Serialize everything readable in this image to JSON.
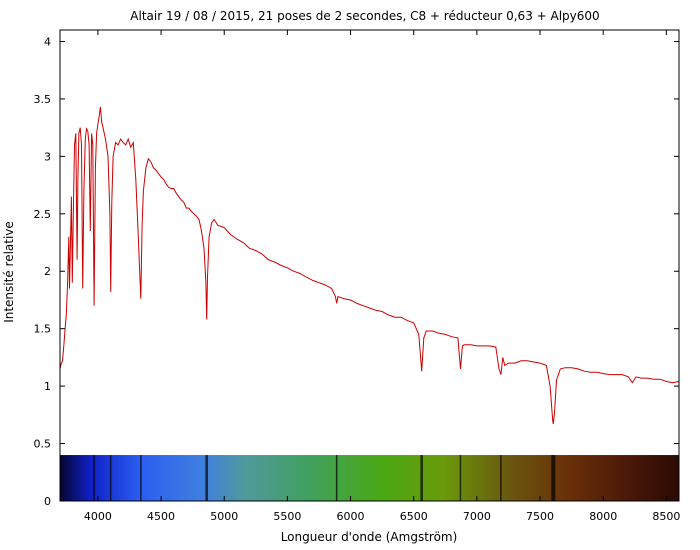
{
  "chart_data": {
    "type": "line",
    "title": "Altair 19 / 08 / 2015, 21 poses de 2 secondes,  C8 + réducteur 0,63 + Alpy600",
    "xlabel": "Longueur d'onde (Amgström)",
    "ylabel": "Intensité relative",
    "xlim": [
      3700,
      8600
    ],
    "ylim": [
      0,
      4.1
    ],
    "x_ticks": [
      4000,
      4500,
      5000,
      5500,
      6000,
      6500,
      7000,
      7500,
      8000,
      8500
    ],
    "y_ticks": [
      0,
      0.5,
      1,
      1.5,
      2,
      2.5,
      3,
      3.5,
      4
    ],
    "grid": false,
    "legend": "none",
    "line_color": "#cc0000",
    "spectrum_band": {
      "y_range": [
        0,
        0.4
      ],
      "absorption_lines": [
        3970,
        4101,
        4340,
        4861,
        5890,
        6563,
        6870,
        7190,
        7605
      ]
    },
    "series": [
      {
        "points": [
          [
            3700,
            1.15
          ],
          [
            3710,
            1.2
          ],
          [
            3720,
            1.22
          ],
          [
            3730,
            1.35
          ],
          [
            3740,
            1.5
          ],
          [
            3750,
            1.62
          ],
          [
            3760,
            1.9
          ],
          [
            3770,
            2.3
          ],
          [
            3775,
            1.85
          ],
          [
            3780,
            2.1
          ],
          [
            3790,
            2.65
          ],
          [
            3797,
            1.9
          ],
          [
            3805,
            2.5
          ],
          [
            3815,
            3.1
          ],
          [
            3825,
            3.2
          ],
          [
            3835,
            2.1
          ],
          [
            3842,
            2.8
          ],
          [
            3850,
            3.2
          ],
          [
            3860,
            3.25
          ],
          [
            3870,
            3.1
          ],
          [
            3880,
            1.85
          ],
          [
            3889,
            2.7
          ],
          [
            3900,
            3.15
          ],
          [
            3910,
            3.24
          ],
          [
            3920,
            3.22
          ],
          [
            3930,
            3.1
          ],
          [
            3940,
            2.35
          ],
          [
            3950,
            3.2
          ],
          [
            3960,
            3.1
          ],
          [
            3970,
            1.7
          ],
          [
            3980,
            2.9
          ],
          [
            3990,
            3.2
          ],
          [
            4000,
            3.28
          ],
          [
            4010,
            3.35
          ],
          [
            4020,
            3.43
          ],
          [
            4030,
            3.3
          ],
          [
            4040,
            3.25
          ],
          [
            4060,
            3.15
          ],
          [
            4080,
            3.0
          ],
          [
            4095,
            2.5
          ],
          [
            4101,
            1.82
          ],
          [
            4110,
            2.6
          ],
          [
            4120,
            3.0
          ],
          [
            4140,
            3.12
          ],
          [
            4160,
            3.1
          ],
          [
            4180,
            3.15
          ],
          [
            4200,
            3.12
          ],
          [
            4220,
            3.1
          ],
          [
            4240,
            3.15
          ],
          [
            4260,
            3.08
          ],
          [
            4280,
            3.12
          ],
          [
            4300,
            2.8
          ],
          [
            4320,
            2.3
          ],
          [
            4340,
            1.76
          ],
          [
            4350,
            2.4
          ],
          [
            4360,
            2.7
          ],
          [
            4380,
            2.9
          ],
          [
            4400,
            2.98
          ],
          [
            4420,
            2.95
          ],
          [
            4440,
            2.9
          ],
          [
            4460,
            2.88
          ],
          [
            4480,
            2.85
          ],
          [
            4500,
            2.82
          ],
          [
            4520,
            2.8
          ],
          [
            4540,
            2.76
          ],
          [
            4560,
            2.73
          ],
          [
            4580,
            2.72
          ],
          [
            4600,
            2.72
          ],
          [
            4620,
            2.68
          ],
          [
            4640,
            2.65
          ],
          [
            4660,
            2.62
          ],
          [
            4680,
            2.6
          ],
          [
            4700,
            2.55
          ],
          [
            4720,
            2.55
          ],
          [
            4740,
            2.52
          ],
          [
            4760,
            2.5
          ],
          [
            4780,
            2.48
          ],
          [
            4800,
            2.45
          ],
          [
            4820,
            2.35
          ],
          [
            4840,
            2.2
          ],
          [
            4855,
            1.9
          ],
          [
            4861,
            1.58
          ],
          [
            4868,
            1.95
          ],
          [
            4880,
            2.3
          ],
          [
            4900,
            2.42
          ],
          [
            4920,
            2.45
          ],
          [
            4950,
            2.4
          ],
          [
            5000,
            2.38
          ],
          [
            5050,
            2.32
          ],
          [
            5100,
            2.28
          ],
          [
            5150,
            2.25
          ],
          [
            5200,
            2.2
          ],
          [
            5250,
            2.18
          ],
          [
            5300,
            2.15
          ],
          [
            5350,
            2.1
          ],
          [
            5400,
            2.08
          ],
          [
            5450,
            2.05
          ],
          [
            5500,
            2.03
          ],
          [
            5550,
            2.0
          ],
          [
            5600,
            1.98
          ],
          [
            5650,
            1.95
          ],
          [
            5700,
            1.92
          ],
          [
            5750,
            1.9
          ],
          [
            5800,
            1.88
          ],
          [
            5850,
            1.85
          ],
          [
            5880,
            1.78
          ],
          [
            5890,
            1.72
          ],
          [
            5900,
            1.78
          ],
          [
            5950,
            1.76
          ],
          [
            6000,
            1.75
          ],
          [
            6050,
            1.72
          ],
          [
            6100,
            1.7
          ],
          [
            6150,
            1.68
          ],
          [
            6200,
            1.66
          ],
          [
            6250,
            1.65
          ],
          [
            6300,
            1.62
          ],
          [
            6350,
            1.6
          ],
          [
            6400,
            1.6
          ],
          [
            6450,
            1.57
          ],
          [
            6500,
            1.55
          ],
          [
            6540,
            1.45
          ],
          [
            6563,
            1.13
          ],
          [
            6580,
            1.42
          ],
          [
            6600,
            1.48
          ],
          [
            6650,
            1.48
          ],
          [
            6700,
            1.46
          ],
          [
            6750,
            1.45
          ],
          [
            6800,
            1.43
          ],
          [
            6850,
            1.42
          ],
          [
            6870,
            1.15
          ],
          [
            6885,
            1.35
          ],
          [
            6900,
            1.36
          ],
          [
            6950,
            1.36
          ],
          [
            7000,
            1.35
          ],
          [
            7050,
            1.35
          ],
          [
            7100,
            1.35
          ],
          [
            7150,
            1.34
          ],
          [
            7175,
            1.15
          ],
          [
            7190,
            1.1
          ],
          [
            7205,
            1.25
          ],
          [
            7220,
            1.18
          ],
          [
            7250,
            1.2
          ],
          [
            7300,
            1.2
          ],
          [
            7350,
            1.22
          ],
          [
            7400,
            1.22
          ],
          [
            7450,
            1.21
          ],
          [
            7500,
            1.2
          ],
          [
            7550,
            1.18
          ],
          [
            7580,
            1.0
          ],
          [
            7600,
            0.7
          ],
          [
            7605,
            0.67
          ],
          [
            7615,
            0.78
          ],
          [
            7630,
            1.05
          ],
          [
            7660,
            1.15
          ],
          [
            7700,
            1.16
          ],
          [
            7750,
            1.16
          ],
          [
            7800,
            1.15
          ],
          [
            7850,
            1.13
          ],
          [
            7900,
            1.12
          ],
          [
            7950,
            1.12
          ],
          [
            8000,
            1.11
          ],
          [
            8050,
            1.1
          ],
          [
            8100,
            1.1
          ],
          [
            8150,
            1.1
          ],
          [
            8200,
            1.08
          ],
          [
            8230,
            1.03
          ],
          [
            8260,
            1.08
          ],
          [
            8300,
            1.07
          ],
          [
            8350,
            1.07
          ],
          [
            8400,
            1.06
          ],
          [
            8450,
            1.06
          ],
          [
            8500,
            1.04
          ],
          [
            8550,
            1.03
          ],
          [
            8600,
            1.04
          ]
        ]
      }
    ]
  }
}
